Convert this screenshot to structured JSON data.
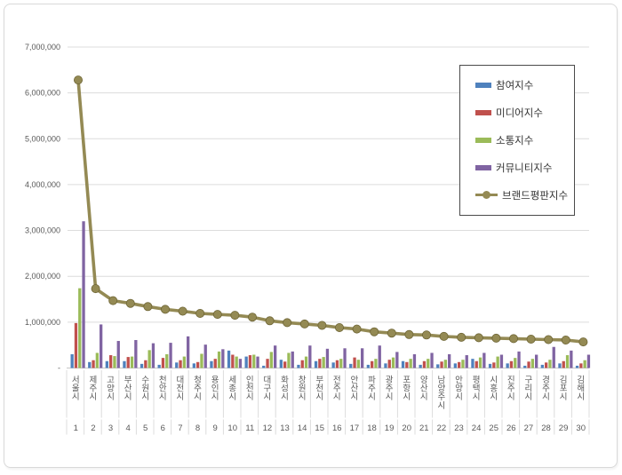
{
  "page": {
    "background": "#ffffff",
    "frame_border_color": "#d9d9d9"
  },
  "chart_data": {
    "type": "bar",
    "subtype": "clustered-bars-with-line",
    "title": "",
    "xlabel": "",
    "ylabel": "",
    "ylim": [
      0,
      7000000
    ],
    "grid": {
      "horizontal": true,
      "vertical": false,
      "color": "#dcdcdc"
    },
    "legend": {
      "position": "top-right",
      "border_color": "#4a4a4a"
    },
    "categories": [
      "서울시",
      "제주시",
      "고양시",
      "부산시",
      "수원시",
      "천안시",
      "대전시",
      "청주시",
      "용인시",
      "세종시",
      "인천시",
      "대구시",
      "화성시",
      "창원시",
      "부천시",
      "전주시",
      "안산시",
      "파주시",
      "광주시",
      "포항시",
      "양산시",
      "남양주시",
      "안양시",
      "평택시",
      "시흥시",
      "진주시",
      "구리시",
      "경주시",
      "김포시",
      "김해시"
    ],
    "ranks": [
      "1",
      "2",
      "3",
      "4",
      "5",
      "6",
      "7",
      "8",
      "9",
      "10",
      "11",
      "12",
      "13",
      "14",
      "15",
      "16",
      "17",
      "18",
      "19",
      "20",
      "21",
      "22",
      "23",
      "24",
      "25",
      "26",
      "27",
      "28",
      "29",
      "30"
    ],
    "y_axis": {
      "ticks": [
        {
          "label": "7,000,000",
          "value": 7000000
        },
        {
          "label": "6,000,000",
          "value": 6000000
        },
        {
          "label": "5,000,000",
          "value": 5000000
        },
        {
          "label": "4,000,000",
          "value": 4000000
        },
        {
          "label": "3,000,000",
          "value": 3000000
        },
        {
          "label": "2,000,000",
          "value": 2000000
        },
        {
          "label": "1,000,000",
          "value": 1000000
        },
        {
          "label": "-",
          "value": 0
        }
      ]
    },
    "series": [
      {
        "name": "참여지수",
        "type": "bar",
        "color": "#4F81BD",
        "values": [
          300000,
          130000,
          150000,
          150000,
          90000,
          70000,
          120000,
          100000,
          150000,
          380000,
          250000,
          50000,
          180000,
          70000,
          150000,
          120000,
          90000,
          70000,
          100000,
          150000,
          70000,
          80000,
          100000,
          200000,
          90000,
          100000,
          50000,
          70000,
          100000,
          50000
        ]
      },
      {
        "name": "미디어지수",
        "type": "bar",
        "color": "#C0504D",
        "values": [
          980000,
          170000,
          280000,
          240000,
          170000,
          220000,
          170000,
          130000,
          200000,
          290000,
          280000,
          200000,
          140000,
          170000,
          200000,
          170000,
          230000,
          150000,
          180000,
          130000,
          150000,
          140000,
          130000,
          150000,
          120000,
          150000,
          140000,
          120000,
          150000,
          100000
        ]
      },
      {
        "name": "소통지수",
        "type": "bar",
        "color": "#9BBB59",
        "values": [
          1740000,
          330000,
          260000,
          250000,
          390000,
          300000,
          250000,
          310000,
          360000,
          250000,
          290000,
          350000,
          330000,
          250000,
          240000,
          200000,
          180000,
          200000,
          230000,
          200000,
          200000,
          180000,
          180000,
          230000,
          250000,
          220000,
          200000,
          180000,
          280000,
          170000
        ]
      },
      {
        "name": "커뮤니티지수",
        "type": "bar",
        "color": "#8064A2",
        "values": [
          3200000,
          950000,
          590000,
          610000,
          540000,
          550000,
          690000,
          510000,
          410000,
          200000,
          250000,
          490000,
          360000,
          490000,
          420000,
          430000,
          430000,
          490000,
          350000,
          300000,
          330000,
          300000,
          280000,
          330000,
          290000,
          360000,
          290000,
          460000,
          380000,
          290000
        ]
      },
      {
        "name": "브랜드평판지수",
        "type": "line",
        "color": "#948A54",
        "marker": "circle",
        "values": [
          6280000,
          1730000,
          1470000,
          1410000,
          1340000,
          1280000,
          1240000,
          1190000,
          1170000,
          1150000,
          1110000,
          1030000,
          990000,
          960000,
          930000,
          880000,
          850000,
          790000,
          760000,
          730000,
          720000,
          690000,
          670000,
          660000,
          650000,
          640000,
          630000,
          620000,
          610000,
          570000
        ]
      }
    ],
    "axis_text_color": "#595959",
    "axis_line_color": "#c6c6c6"
  }
}
